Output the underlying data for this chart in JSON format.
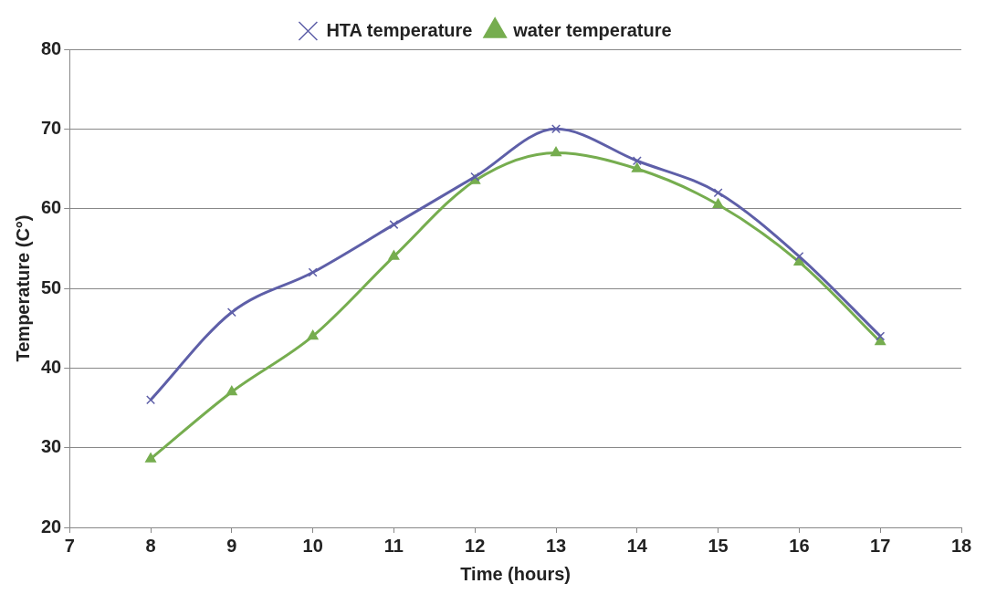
{
  "chart_data": {
    "type": "line",
    "xlabel": "Time (hours)",
    "ylabel": "Temperature (C°)",
    "x": [
      8,
      9,
      10,
      11,
      12,
      13,
      14,
      15,
      16,
      17
    ],
    "series": [
      {
        "name": "HTA temperature",
        "color": "#5e5fa8",
        "marker": "cross",
        "values": [
          36,
          47,
          52,
          58,
          64,
          70,
          66,
          62,
          54,
          44
        ]
      },
      {
        "name": "water temperature",
        "color": "#76ad4f",
        "marker": "triangle",
        "values": [
          28.6,
          37,
          44,
          54,
          63.5,
          67,
          65,
          60.5,
          53.3,
          43.3
        ]
      }
    ],
    "xlim": [
      7,
      18
    ],
    "xticks": [
      7,
      8,
      9,
      10,
      11,
      12,
      13,
      14,
      15,
      16,
      17,
      18
    ],
    "ylim": [
      20,
      80
    ],
    "yticks": [
      20,
      30,
      40,
      50,
      60,
      70,
      80
    ],
    "grid": "y",
    "legend": "top"
  }
}
